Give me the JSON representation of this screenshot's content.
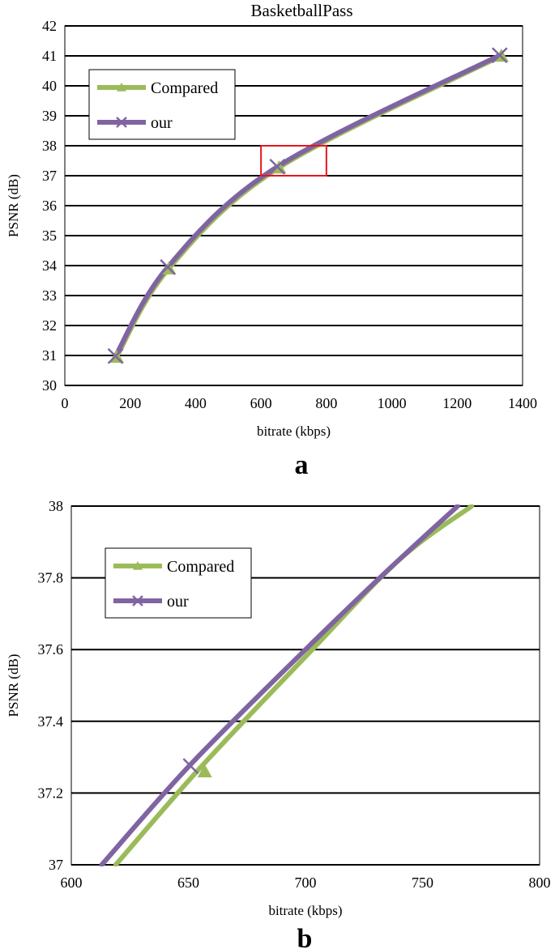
{
  "chart_data": [
    {
      "type": "line",
      "panel_label": "a",
      "title": "BasketballPass",
      "xlabel": "bitrate (kbps)",
      "ylabel": "PSNR (dB)",
      "xlim": [
        0,
        1400
      ],
      "ylim": [
        30,
        42
      ],
      "x_ticks": [
        0,
        200,
        400,
        600,
        800,
        1000,
        1200,
        1400
      ],
      "y_ticks": [
        30,
        31,
        32,
        33,
        34,
        35,
        36,
        37,
        38,
        39,
        40,
        41,
        42
      ],
      "grid": "horizontal",
      "legend_position": "top-left",
      "series": [
        {
          "name": "Compared",
          "color": "#9bbb59",
          "marker": "triangle",
          "x": [
            158,
            318,
            655,
            1335
          ],
          "y": [
            30.95,
            33.9,
            37.27,
            41.0
          ]
        },
        {
          "name": "our",
          "color": "#8064a2",
          "marker": "x",
          "x": [
            155,
            315,
            650,
            1330
          ],
          "y": [
            30.98,
            33.95,
            37.3,
            41.02
          ]
        }
      ],
      "annotation": {
        "type": "rectangle",
        "color": "#e8141c",
        "x": [
          600,
          800
        ],
        "y": [
          37,
          38
        ]
      }
    },
    {
      "type": "line",
      "panel_label": "b",
      "title": "",
      "xlabel": "bitrate (kbps)",
      "ylabel": "PSNR (dB)",
      "xlim": [
        600,
        800
      ],
      "ylim": [
        37,
        38
      ],
      "x_ticks": [
        600,
        650,
        700,
        750,
        800
      ],
      "y_ticks": [
        37,
        37.2,
        37.4,
        37.6,
        37.8,
        38
      ],
      "x_tick_labels": [
        "600",
        "650",
        "700",
        "750",
        "800"
      ],
      "y_tick_labels": [
        "37",
        "37.2",
        "37.4",
        "37.6",
        "37.8",
        "38"
      ],
      "grid": "horizontal",
      "legend_position": "top-left",
      "series": [
        {
          "name": "Compared",
          "color": "#9bbb59",
          "marker": "triangle",
          "x": [
            619,
            655,
            700,
            740,
            771
          ],
          "y": [
            37.0,
            37.27,
            37.58,
            37.85,
            38.0
          ],
          "marker_points": [
            [
              657,
              37.26
            ]
          ]
        },
        {
          "name": "our",
          "color": "#8064a2",
          "marker": "x",
          "x": [
            613,
            651,
            700,
            735,
            765
          ],
          "y": [
            37.0,
            37.28,
            37.6,
            37.82,
            38.0
          ],
          "marker_points": [
            [
              651,
              37.275
            ]
          ]
        }
      ]
    }
  ]
}
